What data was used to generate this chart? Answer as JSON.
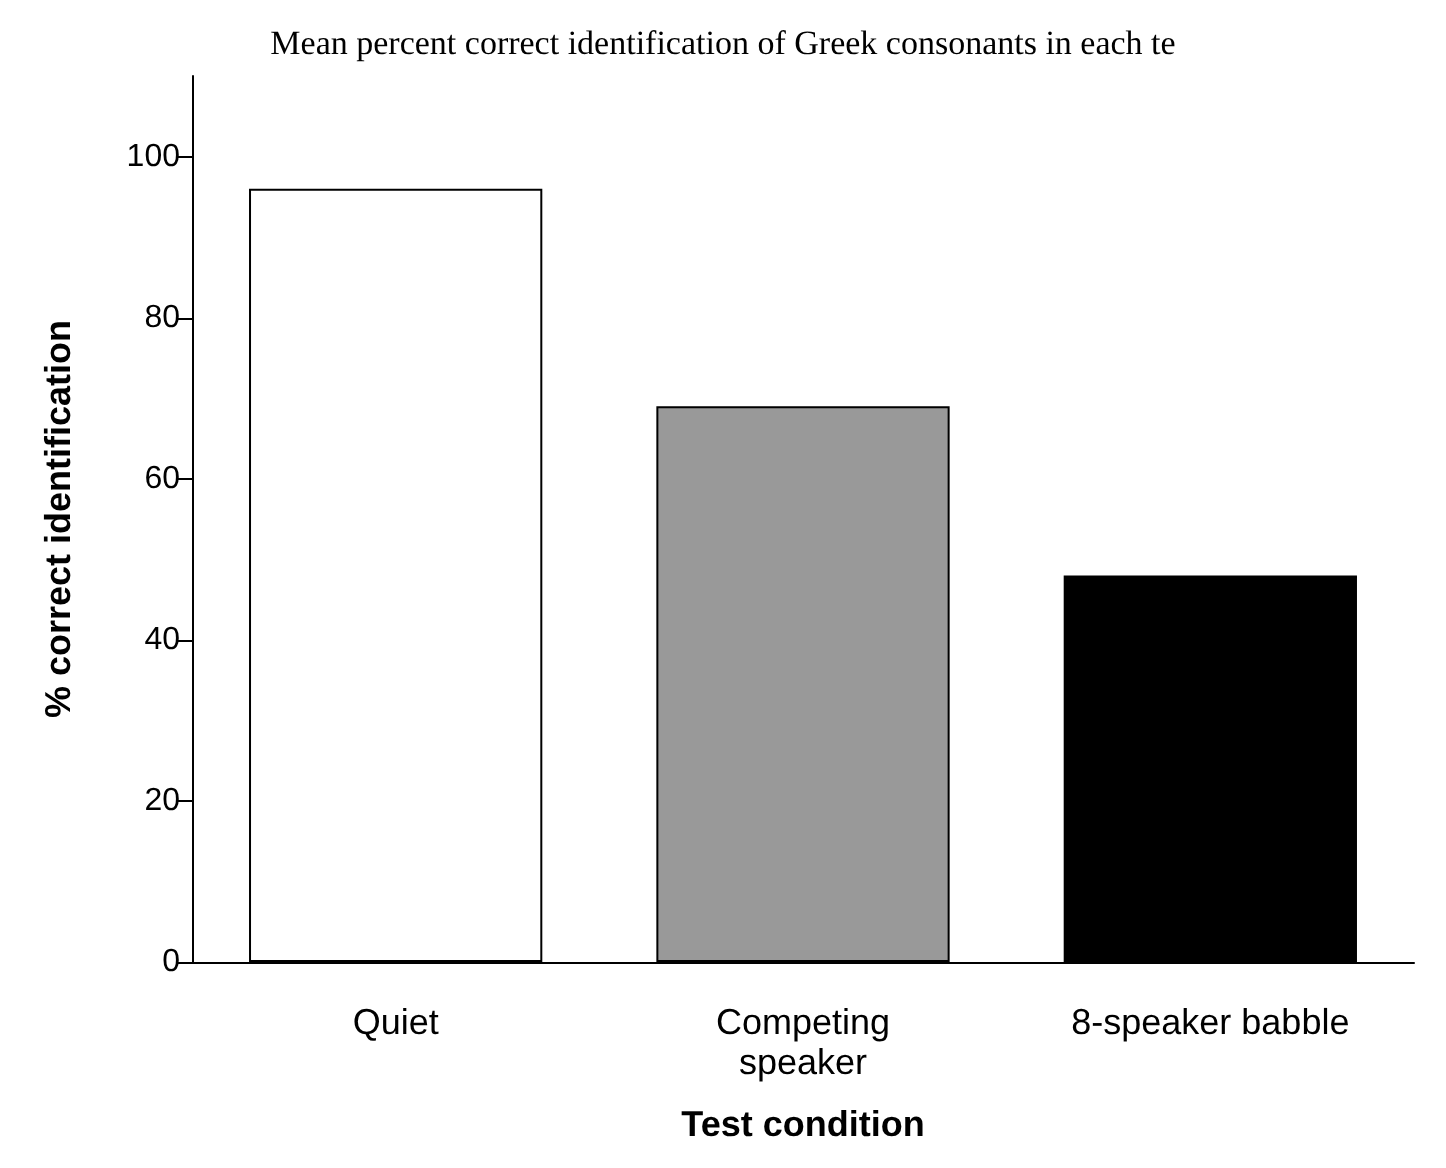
{
  "chart_data": {
    "type": "bar",
    "title": "Mean percent correct identification of Greek consonants in each te",
    "xlabel": "Test condition",
    "ylabel": "% correct identification",
    "categories": [
      "Quiet",
      "Competing\nspeaker",
      "8-speaker babble"
    ],
    "values": [
      96,
      69,
      48
    ],
    "colors": [
      "#ffffff",
      "#999999",
      "#000000"
    ],
    "ylim": [
      0,
      110
    ],
    "yticks": [
      0,
      20,
      40,
      60,
      80,
      100
    ]
  }
}
